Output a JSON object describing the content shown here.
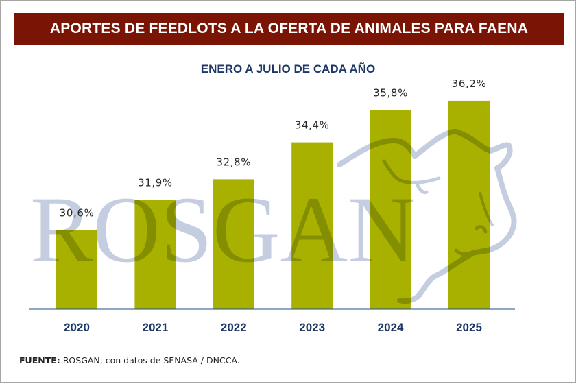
{
  "header": {
    "title": "APORTES DE FEEDLOTS A LA OFERTA DE ANIMALES PARA FAENA"
  },
  "subtitle": "ENERO A JULIO DE CADA AÑO",
  "watermark": {
    "text": "ROSGAN",
    "icon": "cow-head-icon"
  },
  "source": {
    "label": "FUENTE:",
    "text": " ROSGAN, con datos de SENASA / DNCCA."
  },
  "colors": {
    "header_bg": "#7a1405",
    "bar": "#a9b100",
    "axis": "#1f4e8a",
    "year_label": "#1d3766",
    "value_label": "#2a2a2a",
    "watermark": "#c5cde0"
  },
  "chart_data": {
    "type": "bar",
    "title": "APORTES DE FEEDLOTS A LA OFERTA DE ANIMALES PARA FAENA",
    "subtitle": "ENERO A JULIO DE CADA AÑO",
    "categories": [
      "2020",
      "2021",
      "2022",
      "2023",
      "2024",
      "2025"
    ],
    "values": [
      30.6,
      31.9,
      32.8,
      34.4,
      35.8,
      36.2
    ],
    "value_labels": [
      "30,6%",
      "31,9%",
      "32,8%",
      "34,4%",
      "35,8%",
      "36,2%"
    ],
    "unit": "%",
    "xlabel": "",
    "ylabel": "",
    "ylim": [
      27.2,
      37.0
    ],
    "grid": false,
    "legend": "none"
  }
}
